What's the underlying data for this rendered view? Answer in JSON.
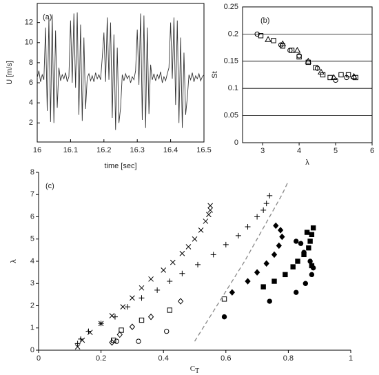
{
  "chart_data": [
    {
      "type": "line",
      "annotation": "(a)",
      "xlabel": "time [sec]",
      "ylabel": "U [m/s]",
      "color": "#333333",
      "xlim": [
        16,
        16.5
      ],
      "xticks": [
        16,
        16.1,
        16.2,
        16.3,
        16.4,
        16.5
      ],
      "ylim": [
        0.1,
        13.9
      ],
      "yticks": [
        2,
        4,
        6,
        8,
        10,
        12
      ],
      "x": [
        16,
        16.005,
        16.01,
        16.015,
        16.02,
        16.025,
        16.03,
        16.035,
        16.04,
        16.045,
        16.05,
        16.055,
        16.06,
        16.065,
        16.07,
        16.075,
        16.08,
        16.085,
        16.09,
        16.095,
        16.1,
        16.105,
        16.11,
        16.115,
        16.12,
        16.125,
        16.13,
        16.135,
        16.14,
        16.145,
        16.15,
        16.155,
        16.16,
        16.165,
        16.17,
        16.175,
        16.18,
        16.185,
        16.19,
        16.195,
        16.2,
        16.205,
        16.21,
        16.215,
        16.22,
        16.225,
        16.23,
        16.235,
        16.24,
        16.245,
        16.25,
        16.255,
        16.26,
        16.265,
        16.27,
        16.275,
        16.28,
        16.285,
        16.29,
        16.295,
        16.3,
        16.305,
        16.31,
        16.315,
        16.32,
        16.325,
        16.33,
        16.335,
        16.34,
        16.345,
        16.35,
        16.355,
        16.36,
        16.365,
        16.37,
        16.375,
        16.38,
        16.385,
        16.39,
        16.395,
        16.4,
        16.405,
        16.41,
        16.415,
        16.42,
        16.425,
        16.43,
        16.435,
        16.44,
        16.445,
        16.45,
        16.455,
        16.46,
        16.465,
        16.47,
        16.475,
        16.48,
        16.485,
        16.49,
        16.495,
        16.5
      ],
      "values": [
        6.5,
        7.2,
        6.1,
        6.8,
        6.3,
        11.5,
        3.2,
        12.4,
        2.1,
        12.8,
        2.0,
        11.2,
        3.5,
        7.5,
        6.2,
        6.8,
        6.4,
        7.0,
        6.1,
        6.6,
        12.2,
        6.0,
        12.9,
        5.5,
        13.0,
        2.8,
        11.8,
        2.2,
        10.5,
        3.4,
        6.5,
        6.9,
        6.2,
        6.7,
        6.1,
        7.0,
        6.4,
        6.8,
        6.3,
        8.5,
        11.0,
        6.1,
        12.5,
        6.3,
        12.0,
        2.5,
        10.8,
        1.3,
        9.5,
        2.0,
        3.5,
        6.8,
        6.2,
        6.9,
        6.4,
        6.7,
        6.0,
        6.6,
        6.3,
        7.2,
        11.3,
        5.8,
        12.9,
        2.3,
        12.7,
        1.5,
        11.5,
        2.9,
        7.8,
        6.3,
        6.9,
        6.2,
        6.8,
        6.4,
        7.1,
        6.0,
        6.6,
        6.2,
        6.9,
        7.5,
        12.0,
        6.4,
        12.5,
        3.8,
        12.2,
        2.0,
        10.5,
        1.5,
        9.0,
        2.8,
        4.5,
        6.8,
        6.3,
        7.0,
        6.1,
        6.7,
        6.4,
        6.9,
        6.2,
        6.6,
        6.8
      ]
    },
    {
      "type": "scatter",
      "annotation": "(b)",
      "xlabel": "λ",
      "ylabel": "St",
      "grid": true,
      "xlim": [
        2.45,
        6
      ],
      "xticks": [
        3,
        4,
        5,
        6
      ],
      "ylim": [
        0,
        0.25
      ],
      "yticks": [
        0,
        0.05,
        0.1,
        0.15,
        0.2,
        0.25
      ],
      "series": [
        {
          "marker": "circle",
          "filled": false,
          "color": "#000000",
          "x": [
            2.85,
            3.5,
            3.75,
            4.0,
            4.5,
            5.0,
            5.3,
            5.5
          ],
          "values": [
            0.2,
            0.18,
            0.17,
            0.16,
            0.137,
            0.115,
            0.12,
            0.12
          ]
        },
        {
          "marker": "triangle",
          "filled": false,
          "color": "#000000",
          "x": [
            3.15,
            3.55,
            3.95,
            4.25,
            4.6,
            4.95,
            5.5
          ],
          "values": [
            0.19,
            0.182,
            0.17,
            0.15,
            0.13,
            0.12,
            0.122
          ]
        },
        {
          "marker": "square",
          "filled": false,
          "color": "#000000",
          "x": [
            2.95,
            3.3,
            3.55,
            3.8,
            4.0,
            4.25,
            4.45,
            4.65,
            4.85,
            5.15,
            5.35,
            5.55
          ],
          "values": [
            0.197,
            0.188,
            0.178,
            0.17,
            0.158,
            0.148,
            0.138,
            0.125,
            0.12,
            0.125,
            0.125,
            0.12
          ]
        }
      ]
    },
    {
      "type": "scatter",
      "annotation": "(c)",
      "xlabel": "C",
      "xlabel_sub": "T",
      "ylabel": "λ",
      "grid": false,
      "xlim": [
        0,
        1
      ],
      "xticks": [
        0,
        0.2,
        0.4,
        0.6,
        0.8,
        1
      ],
      "ylim": [
        0,
        8
      ],
      "yticks": [
        0,
        1,
        2,
        3,
        4,
        5,
        6,
        7,
        8
      ],
      "series": [
        {
          "marker": "x",
          "filled": false,
          "color": "#000000",
          "x": [
            0.125,
            0.14,
            0.165,
            0.2,
            0.235,
            0.27,
            0.3,
            0.33,
            0.36,
            0.4,
            0.43,
            0.46,
            0.48,
            0.5,
            0.52,
            0.535,
            0.545,
            0.55,
            0.55
          ],
          "values": [
            0.15,
            0.45,
            0.8,
            1.2,
            1.55,
            1.95,
            2.35,
            2.8,
            3.2,
            3.6,
            3.95,
            4.35,
            4.65,
            5.0,
            5.4,
            5.8,
            6.1,
            6.3,
            6.5
          ]
        },
        {
          "marker": "plus",
          "filled": false,
          "color": "#000000",
          "x": [
            0.125,
            0.135,
            0.16,
            0.2,
            0.245,
            0.285,
            0.33,
            0.38,
            0.42,
            0.46,
            0.51,
            0.56,
            0.6,
            0.64,
            0.67,
            0.7,
            0.72,
            0.73,
            0.74
          ],
          "values": [
            0.3,
            0.5,
            0.85,
            1.2,
            1.5,
            1.95,
            2.35,
            2.7,
            3.1,
            3.45,
            3.85,
            4.3,
            4.75,
            5.15,
            5.55,
            6.0,
            6.3,
            6.6,
            6.95
          ]
        },
        {
          "marker": "square",
          "filled": false,
          "color": "#000000",
          "x": [
            0.24,
            0.265,
            0.33,
            0.42,
            0.595
          ],
          "values": [
            0.45,
            0.9,
            1.35,
            1.8,
            2.3
          ]
        },
        {
          "marker": "diamond",
          "filled": false,
          "color": "#000000",
          "x": [
            0.235,
            0.26,
            0.3,
            0.36,
            0.455
          ],
          "values": [
            0.35,
            0.7,
            1.05,
            1.5,
            2.2
          ]
        },
        {
          "marker": "circle",
          "filled": false,
          "color": "#000000",
          "x": [
            0.25,
            0.32,
            0.41
          ],
          "values": [
            0.4,
            0.4,
            0.85
          ]
        },
        {
          "marker": "diamond",
          "filled": true,
          "color": "#000000",
          "x": [
            0.62,
            0.67,
            0.7,
            0.73,
            0.755,
            0.77,
            0.78,
            0.775,
            0.76
          ],
          "values": [
            2.6,
            3.1,
            3.5,
            3.9,
            4.3,
            4.7,
            5.1,
            5.4,
            5.6
          ]
        },
        {
          "marker": "square",
          "filled": true,
          "color": "#000000",
          "x": [
            0.72,
            0.755,
            0.79,
            0.815,
            0.83,
            0.85,
            0.865,
            0.87,
            0.875,
            0.88,
            0.86,
            0.875
          ],
          "values": [
            2.85,
            3.1,
            3.4,
            3.75,
            4.0,
            4.3,
            4.6,
            4.9,
            5.2,
            5.5,
            5.3,
            3.8
          ]
        },
        {
          "marker": "circle",
          "filled": true,
          "color": "#000000",
          "x": [
            0.595,
            0.74,
            0.825,
            0.855,
            0.875,
            0.88,
            0.87,
            0.85,
            0.84,
            0.825
          ],
          "values": [
            1.5,
            2.2,
            2.6,
            3.0,
            3.4,
            3.7,
            4.0,
            4.4,
            4.8,
            4.9
          ]
        },
        {
          "marker": "dashed-line",
          "filled": false,
          "color": "#888888",
          "x": [
            0.5,
            0.54,
            0.58,
            0.62,
            0.66,
            0.7,
            0.74,
            0.78,
            0.8
          ],
          "values": [
            0.4,
            1.3,
            2.2,
            3.1,
            4.0,
            5.0,
            6.0,
            7.0,
            7.6
          ]
        }
      ]
    }
  ]
}
